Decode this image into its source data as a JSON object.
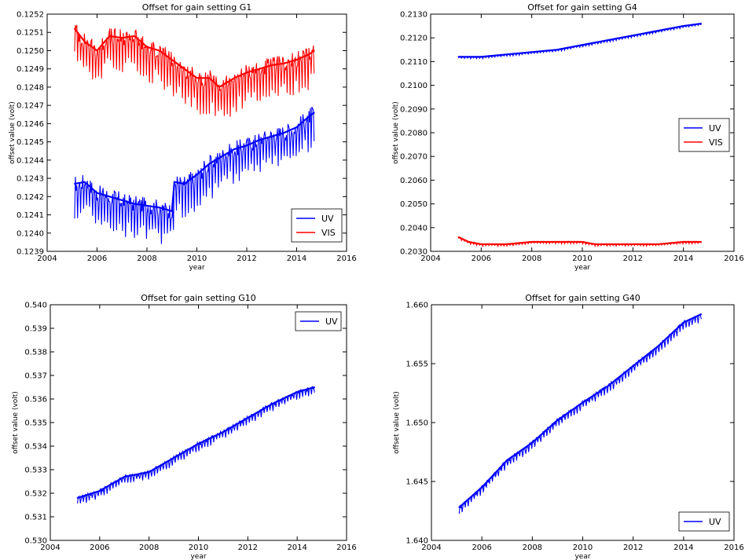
{
  "chart_data": [
    {
      "type": "line",
      "title": "Offset for gain setting G1",
      "xlabel": "year",
      "ylabel": "offset value (volt)",
      "xlim": [
        2004,
        2016
      ],
      "ylim": [
        0.1239,
        0.1252
      ],
      "xticks": [
        "2004",
        "2006",
        "2008",
        "2010",
        "2012",
        "2014",
        "2016"
      ],
      "yticks": [
        "0.1239",
        "0.1240",
        "0.1241",
        "0.1242",
        "0.1243",
        "0.1244",
        "0.1245",
        "0.1246",
        "0.1247",
        "0.1248",
        "0.1249",
        "0.1250",
        "0.1251",
        "0.1252"
      ],
      "legend_position": "lower-right",
      "series": [
        {
          "name": "UV",
          "color": "#0000ff",
          "x": [
            2005.1,
            2005.5,
            2006.0,
            2006.5,
            2007.0,
            2007.5,
            2008.0,
            2008.5,
            2009.0,
            2009.1,
            2009.5,
            2010.0,
            2010.5,
            2011.0,
            2011.5,
            2012.0,
            2012.5,
            2013.0,
            2013.5,
            2014.0,
            2014.5,
            2014.7
          ],
          "y": [
            0.12427,
            0.12428,
            0.12422,
            0.1242,
            0.12418,
            0.12416,
            0.12415,
            0.12414,
            0.12412,
            0.12428,
            0.12427,
            0.12432,
            0.12438,
            0.12442,
            0.12446,
            0.12448,
            0.12451,
            0.12453,
            0.12455,
            0.12458,
            0.12464,
            0.12466
          ]
        },
        {
          "name": "VIS",
          "color": "#ff0000",
          "x": [
            2005.1,
            2005.5,
            2006.0,
            2006.5,
            2007.0,
            2007.5,
            2008.0,
            2008.5,
            2009.0,
            2009.5,
            2010.0,
            2010.5,
            2010.9,
            2011.5,
            2012.0,
            2012.5,
            2013.0,
            2013.5,
            2014.0,
            2014.5,
            2014.7
          ],
          "y": [
            0.12512,
            0.12505,
            0.125,
            0.12508,
            0.12507,
            0.12508,
            0.12502,
            0.125,
            0.12495,
            0.1249,
            0.12485,
            0.12485,
            0.1248,
            0.12485,
            0.12488,
            0.1249,
            0.12492,
            0.12493,
            0.12495,
            0.12498,
            0.125
          ]
        }
      ]
    },
    {
      "type": "line",
      "title": "Offset for gain setting G4",
      "xlabel": "year",
      "ylabel": "offset value (volt)",
      "xlim": [
        2004,
        2016
      ],
      "ylim": [
        0.203,
        0.213
      ],
      "xticks": [
        "2004",
        "2006",
        "2008",
        "2010",
        "2012",
        "2014",
        "2016"
      ],
      "yticks": [
        "0.2030",
        "0.2040",
        "0.2050",
        "0.2060",
        "0.2070",
        "0.2080",
        "0.2090",
        "0.2100",
        "0.2110",
        "0.2120",
        "0.2130"
      ],
      "legend_position": "center-right",
      "series": [
        {
          "name": "UV",
          "color": "#0000ff",
          "x": [
            2005.1,
            2006.0,
            2007.0,
            2008.0,
            2009.0,
            2010.0,
            2011.0,
            2012.0,
            2013.0,
            2014.0,
            2014.7
          ],
          "y": [
            0.2112,
            0.2112,
            0.2113,
            0.2114,
            0.2115,
            0.2117,
            0.2119,
            0.2121,
            0.2123,
            0.2125,
            0.2126
          ]
        },
        {
          "name": "VIS",
          "color": "#ff0000",
          "x": [
            2005.1,
            2005.5,
            2006.0,
            2007.0,
            2008.0,
            2009.0,
            2010.0,
            2010.5,
            2011.0,
            2012.0,
            2013.0,
            2014.0,
            2014.7
          ],
          "y": [
            0.2036,
            0.2034,
            0.2033,
            0.2033,
            0.2034,
            0.2034,
            0.2034,
            0.2033,
            0.2033,
            0.2033,
            0.2033,
            0.2034,
            0.2034
          ]
        }
      ]
    },
    {
      "type": "line",
      "title": "Offset for gain setting G10",
      "xlabel": "year",
      "ylabel": "offset value (volt)",
      "xlim": [
        2004,
        2016
      ],
      "ylim": [
        0.53,
        0.54
      ],
      "xticks": [
        "2004",
        "2006",
        "2008",
        "2010",
        "2012",
        "2014",
        "2016"
      ],
      "yticks": [
        "0.530",
        "0.531",
        "0.532",
        "0.533",
        "0.534",
        "0.535",
        "0.536",
        "0.537",
        "0.538",
        "0.539",
        "0.540"
      ],
      "legend_position": "upper-right",
      "series": [
        {
          "name": "UV",
          "color": "#0000ff",
          "x": [
            2005.1,
            2006.0,
            2007.0,
            2008.0,
            2009.0,
            2010.0,
            2011.0,
            2012.0,
            2013.0,
            2014.0,
            2014.7
          ],
          "y": [
            0.5318,
            0.5321,
            0.5327,
            0.5329,
            0.5335,
            0.5341,
            0.5346,
            0.5352,
            0.5358,
            0.5363,
            0.5365
          ]
        }
      ]
    },
    {
      "type": "line",
      "title": "Offset for gain setting G40",
      "xlabel": "year",
      "ylabel": "offset value (volt)",
      "xlim": [
        2004,
        2016
      ],
      "ylim": [
        1.64,
        1.66
      ],
      "xticks": [
        "2004",
        "2006",
        "2008",
        "2010",
        "2012",
        "2014",
        "2016"
      ],
      "yticks": [
        "1.640",
        "1.645",
        "1.650",
        "1.655",
        "1.660"
      ],
      "legend_position": "lower-right",
      "series": [
        {
          "name": "UV",
          "color": "#0000ff",
          "x": [
            2005.1,
            2006.0,
            2007.0,
            2008.0,
            2009.0,
            2010.0,
            2011.0,
            2012.0,
            2013.0,
            2014.0,
            2014.7
          ],
          "y": [
            1.6428,
            1.6445,
            1.6468,
            1.6483,
            1.6502,
            1.6517,
            1.6531,
            1.6548,
            1.6565,
            1.6585,
            1.6592
          ]
        }
      ]
    }
  ]
}
